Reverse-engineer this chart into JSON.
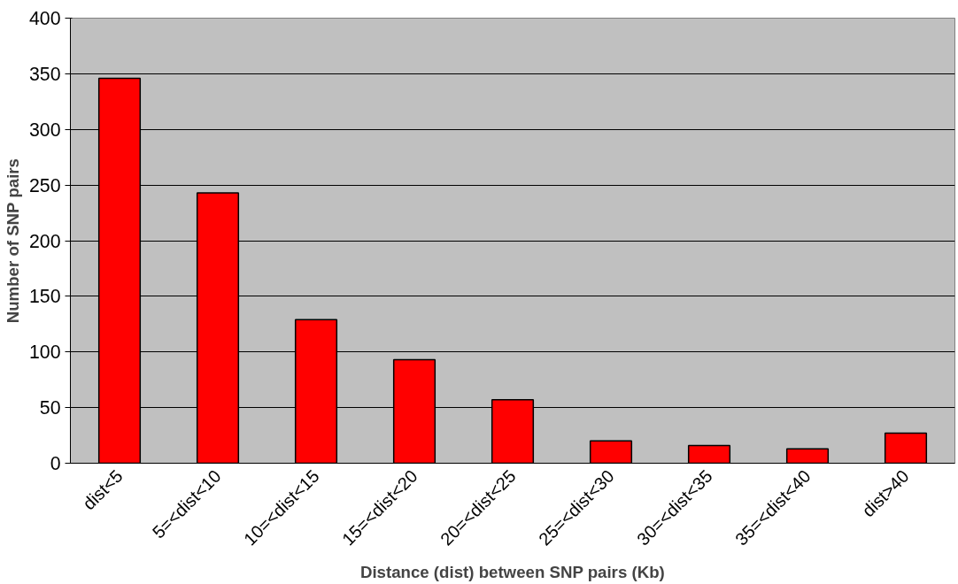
{
  "chart_data": {
    "type": "bar",
    "xlabel": "Distance (dist) between SNP pairs (Kb)",
    "ylabel": "Number of SNP pairs",
    "categories": [
      "dist<5",
      "5=<dist<10",
      "10=<dist<15",
      "15=<dist<20",
      "20=<dist<25",
      "25=<dist<30",
      "30=<dist<35",
      "35=<dist<40",
      "dist>40"
    ],
    "values": [
      346,
      243,
      129,
      93,
      57,
      20,
      16,
      13,
      27
    ],
    "color": "#ff0000",
    "ylim": [
      0,
      400
    ],
    "yticks": [
      0,
      50,
      100,
      150,
      200,
      250,
      300,
      350,
      400
    ],
    "grid": "y"
  }
}
